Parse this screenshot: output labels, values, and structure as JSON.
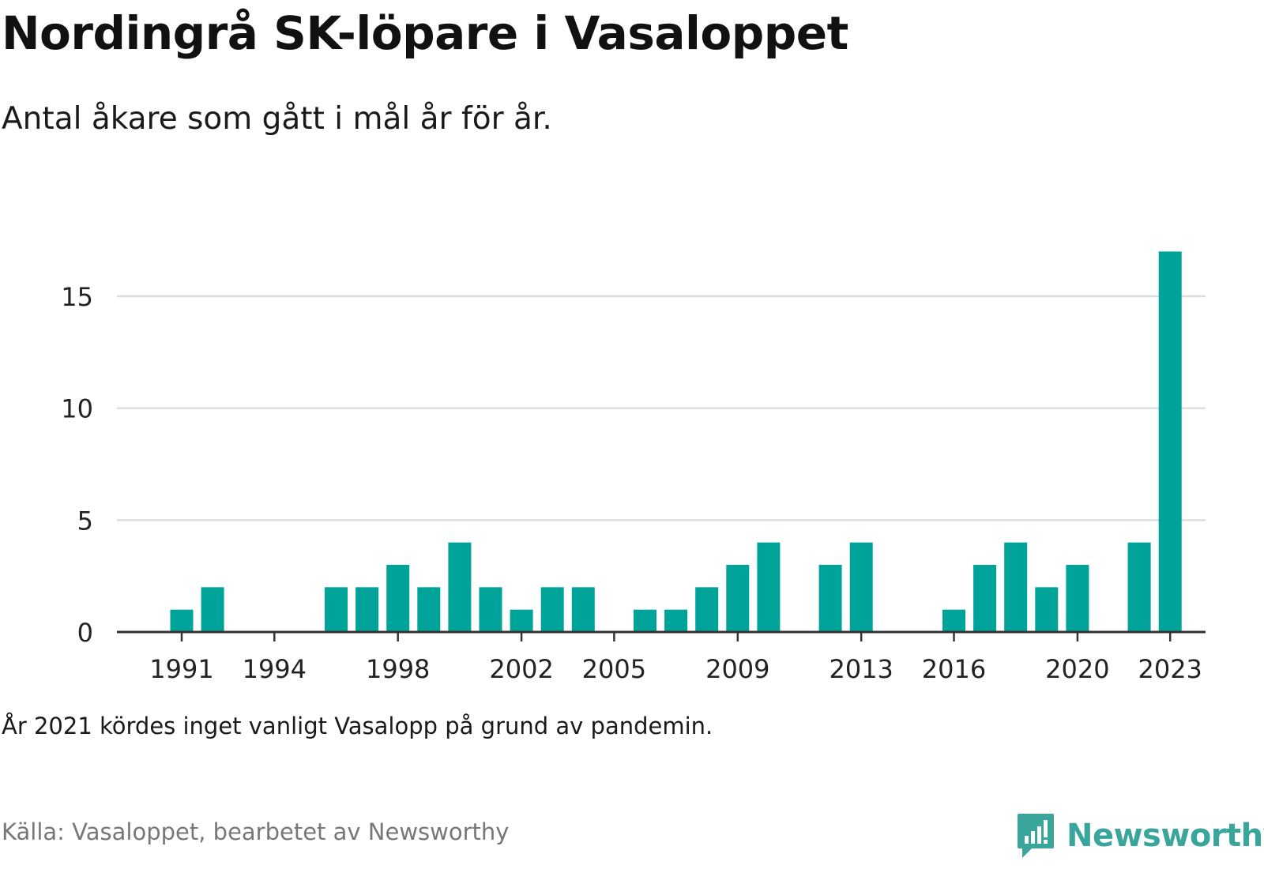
{
  "header": {
    "title": "Nordingrå SK-löpare i Vasaloppet",
    "subtitle": "Antal åkare som gått i mål år för år."
  },
  "footer": {
    "note": "År 2021 kördes inget vanligt Vasalopp på grund av pandemin.",
    "source": "Källa: Vasaloppet, bearbetet av Newsworthy",
    "brand": "Newsworthy"
  },
  "colors": {
    "bar": "#00a39a",
    "brand": "#3aa59a",
    "grid": "#dddddd",
    "axis": "#333333"
  },
  "icons": {
    "brand_logo": "bar-chart-speech-bubble-icon"
  },
  "chart_data": {
    "type": "bar",
    "x": [
      1991,
      1992,
      1993,
      1994,
      1995,
      1996,
      1997,
      1998,
      1999,
      2000,
      2001,
      2002,
      2003,
      2004,
      2005,
      2006,
      2007,
      2008,
      2009,
      2010,
      2011,
      2012,
      2013,
      2014,
      2015,
      2016,
      2017,
      2018,
      2019,
      2020,
      2021,
      2022,
      2023
    ],
    "values": [
      1,
      2,
      0,
      0,
      0,
      2,
      2,
      3,
      2,
      4,
      2,
      1,
      2,
      2,
      0,
      1,
      1,
      2,
      3,
      4,
      0,
      3,
      4,
      0,
      0,
      1,
      3,
      4,
      2,
      3,
      0,
      4,
      17
    ],
    "x_ticks": [
      "1991",
      "1994",
      "1998",
      "2002",
      "2005",
      "2009",
      "2013",
      "2016",
      "2020",
      "2023"
    ],
    "y_ticks": [
      "0",
      "5",
      "10",
      "15"
    ],
    "ylim": [
      0,
      17
    ],
    "xlabel": "",
    "ylabel": "",
    "grid": true
  }
}
